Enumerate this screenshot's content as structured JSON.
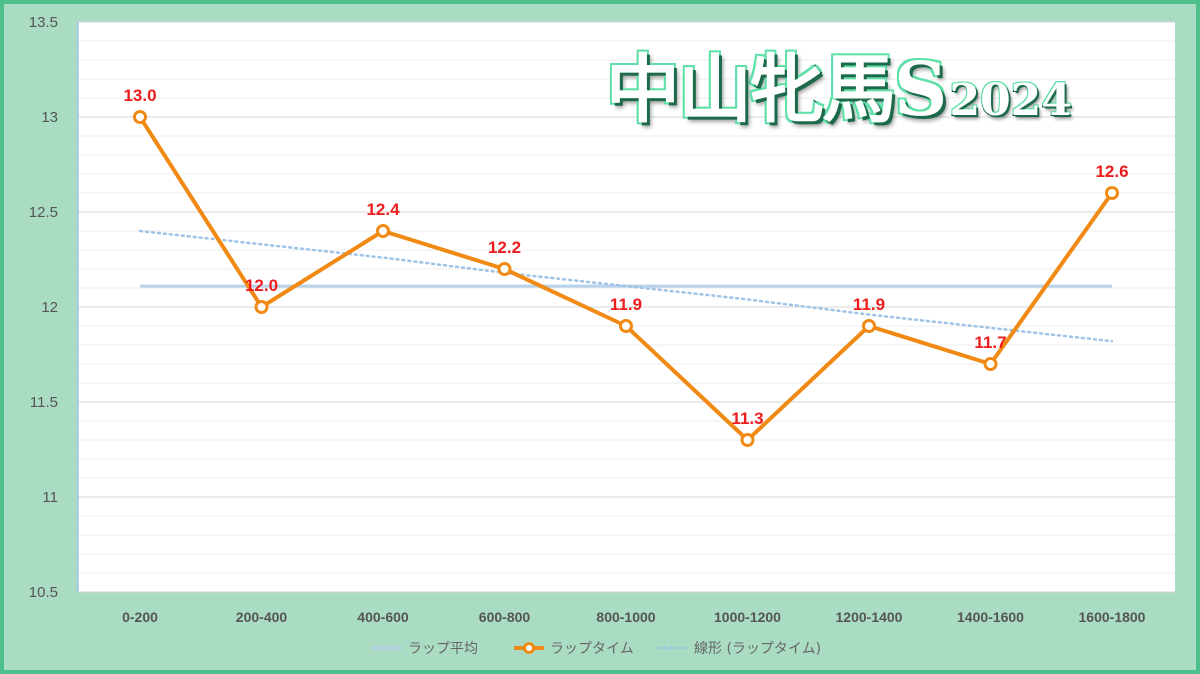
{
  "title": {
    "main": "中山牝馬S",
    "year": "2024"
  },
  "colors": {
    "lap_time": "#f08a14",
    "lap_average": "#b8d2ea",
    "trend": "#9fc3e6",
    "data_label": "#ee1c1c",
    "frame": "#4dbf8a",
    "frame_fill": "#a9dcc2"
  },
  "chart_data": {
    "type": "line",
    "categories": [
      "0-200",
      "200-400",
      "400-600",
      "600-800",
      "800-1000",
      "1000-1200",
      "1200-1400",
      "1400-1600",
      "1600-1800"
    ],
    "series": [
      {
        "name": "ラップ平均",
        "values": [
          12.11,
          12.11,
          12.11,
          12.11,
          12.11,
          12.11,
          12.11,
          12.11,
          12.11
        ]
      },
      {
        "name": "ラップタイム",
        "values": [
          13.0,
          12.0,
          12.4,
          12.2,
          11.9,
          11.3,
          11.9,
          11.7,
          12.6
        ],
        "data_labels": [
          "13.0",
          "12.0",
          "12.4",
          "12.2",
          "11.9",
          "11.3",
          "11.9",
          "11.7",
          "12.6"
        ]
      },
      {
        "name": "線形 (ラップタイム)",
        "values": [
          12.4,
          12.33,
          12.26,
          12.18,
          12.11,
          12.04,
          11.96,
          11.89,
          11.82
        ]
      }
    ],
    "ylim": [
      10.5,
      13.5
    ],
    "yticks": [
      {
        "v": 10.5,
        "label": "10.5"
      },
      {
        "v": 11,
        "label": "11"
      },
      {
        "v": 11.5,
        "label": "11.5"
      },
      {
        "v": 12,
        "label": "12"
      },
      {
        "v": 12.5,
        "label": "12.5"
      },
      {
        "v": 13,
        "label": "13"
      },
      {
        "v": 13.5,
        "label": "13.5"
      }
    ],
    "grid": true,
    "legend": "bottom"
  }
}
